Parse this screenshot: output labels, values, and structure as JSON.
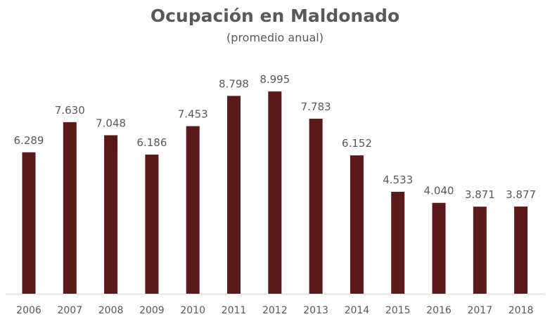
{
  "chart_data": {
    "type": "bar",
    "title": "Ocupación en Maldonado",
    "subtitle": "(promedio anual)",
    "xlabel": "",
    "ylabel": "",
    "categories": [
      "2006",
      "2007",
      "2008",
      "2009",
      "2010",
      "2011",
      "2012",
      "2013",
      "2014",
      "2015",
      "2016",
      "2017",
      "2018"
    ],
    "values": [
      6289,
      7630,
      7048,
      6186,
      7453,
      8798,
      8995,
      7783,
      6152,
      4533,
      4040,
      3871,
      3877
    ],
    "value_labels": [
      "6.289",
      "7.630",
      "7.048",
      "6.186",
      "7.453",
      "8.798",
      "8.995",
      "7.783",
      "6.152",
      "4.533",
      "4.040",
      "3.871",
      "3.877"
    ],
    "ylim": [
      0,
      9000
    ],
    "grid": false,
    "legend": "none",
    "bar_color": "#5a1a1a",
    "axis_color": "#d9d9d9"
  }
}
